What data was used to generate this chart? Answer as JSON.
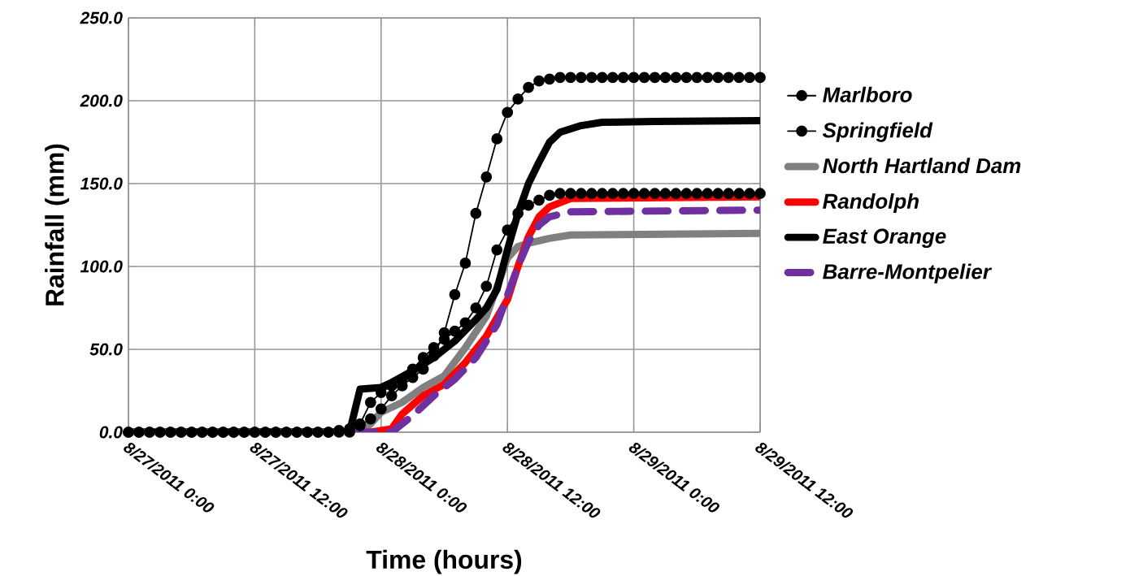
{
  "chart_data": {
    "type": "line",
    "xlabel": "Time (hours)",
    "ylabel": "Rainfall (mm)",
    "xlim": [
      "2011-08-27T00:00",
      "2011-08-29T12:00"
    ],
    "ylim": [
      0,
      250
    ],
    "xticks": [
      {
        "value": "2011-08-27T00:00",
        "label": "8/27/2011 0:00"
      },
      {
        "value": "2011-08-27T12:00",
        "label": "8/27/2011 12:00"
      },
      {
        "value": "2011-08-28T00:00",
        "label": "8/28/2011 0:00"
      },
      {
        "value": "2011-08-28T12:00",
        "label": "8/28/2011 12:00"
      },
      {
        "value": "2011-08-29T00:00",
        "label": "8/29/2011 0:00"
      },
      {
        "value": "2011-08-29T12:00",
        "label": "8/29/2011 12:00"
      }
    ],
    "yticks": [
      {
        "value": 0,
        "label": "0.0"
      },
      {
        "value": 50,
        "label": "50.0"
      },
      {
        "value": 100,
        "label": "100.0"
      },
      {
        "value": 150,
        "label": "150.0"
      },
      {
        "value": 200,
        "label": "200.0"
      },
      {
        "value": 250,
        "label": "250.0"
      }
    ],
    "grid": true,
    "legend": "right",
    "series": [
      {
        "name": "Marlboro",
        "color": "#000000",
        "marker": "circle",
        "x": [
          "2011-08-27T00:00",
          "2011-08-27T01:00",
          "2011-08-27T02:00",
          "2011-08-27T03:00",
          "2011-08-27T04:00",
          "2011-08-27T05:00",
          "2011-08-27T06:00",
          "2011-08-27T07:00",
          "2011-08-27T08:00",
          "2011-08-27T09:00",
          "2011-08-27T10:00",
          "2011-08-27T11:00",
          "2011-08-27T12:00",
          "2011-08-27T13:00",
          "2011-08-27T14:00",
          "2011-08-27T15:00",
          "2011-08-27T16:00",
          "2011-08-27T17:00",
          "2011-08-27T18:00",
          "2011-08-27T19:00",
          "2011-08-27T20:00",
          "2011-08-27T21:00",
          "2011-08-27T22:00",
          "2011-08-27T23:00",
          "2011-08-28T00:00",
          "2011-08-28T01:00",
          "2011-08-28T02:00",
          "2011-08-28T03:00",
          "2011-08-28T04:00",
          "2011-08-28T05:00",
          "2011-08-28T06:00",
          "2011-08-28T07:00",
          "2011-08-28T08:00",
          "2011-08-28T09:00",
          "2011-08-28T10:00",
          "2011-08-28T11:00",
          "2011-08-28T12:00",
          "2011-08-28T13:00",
          "2011-08-28T14:00",
          "2011-08-28T15:00",
          "2011-08-28T16:00",
          "2011-08-28T17:00",
          "2011-08-28T18:00",
          "2011-08-28T19:00",
          "2011-08-28T20:00",
          "2011-08-28T21:00",
          "2011-08-28T22:00",
          "2011-08-28T23:00",
          "2011-08-29T00:00",
          "2011-08-29T01:00",
          "2011-08-29T02:00",
          "2011-08-29T03:00",
          "2011-08-29T04:00",
          "2011-08-29T05:00",
          "2011-08-29T06:00",
          "2011-08-29T07:00",
          "2011-08-29T08:00",
          "2011-08-29T09:00",
          "2011-08-29T10:00",
          "2011-08-29T11:00",
          "2011-08-29T12:00"
        ],
        "values": [
          0,
          0,
          0,
          0,
          0,
          0,
          0,
          0,
          0,
          0,
          0,
          0,
          0,
          0,
          0,
          0,
          0,
          0,
          0,
          0,
          1,
          2,
          4,
          8,
          14,
          22,
          28,
          33,
          38,
          46,
          60,
          83,
          102,
          132,
          154,
          177,
          193,
          201,
          208,
          212,
          213,
          214,
          214,
          214,
          214,
          214,
          214,
          214,
          214,
          214,
          214,
          214,
          214,
          214,
          214,
          214,
          214,
          214,
          214,
          214,
          214
        ]
      },
      {
        "name": "Springfield",
        "color": "#000000",
        "marker": "circle",
        "x": [
          "2011-08-27T00:00",
          "2011-08-27T01:00",
          "2011-08-27T02:00",
          "2011-08-27T03:00",
          "2011-08-27T04:00",
          "2011-08-27T05:00",
          "2011-08-27T06:00",
          "2011-08-27T07:00",
          "2011-08-27T08:00",
          "2011-08-27T09:00",
          "2011-08-27T10:00",
          "2011-08-27T11:00",
          "2011-08-27T12:00",
          "2011-08-27T13:00",
          "2011-08-27T14:00",
          "2011-08-27T15:00",
          "2011-08-27T16:00",
          "2011-08-27T17:00",
          "2011-08-27T18:00",
          "2011-08-27T19:00",
          "2011-08-27T20:00",
          "2011-08-27T21:00",
          "2011-08-27T22:00",
          "2011-08-27T23:00",
          "2011-08-28T00:00",
          "2011-08-28T01:00",
          "2011-08-28T02:00",
          "2011-08-28T03:00",
          "2011-08-28T04:00",
          "2011-08-28T05:00",
          "2011-08-28T06:00",
          "2011-08-28T07:00",
          "2011-08-28T08:00",
          "2011-08-28T09:00",
          "2011-08-28T10:00",
          "2011-08-28T11:00",
          "2011-08-28T12:00",
          "2011-08-28T13:00",
          "2011-08-28T14:00",
          "2011-08-28T15:00",
          "2011-08-28T16:00",
          "2011-08-28T17:00",
          "2011-08-28T18:00",
          "2011-08-28T19:00",
          "2011-08-28T20:00",
          "2011-08-28T21:00",
          "2011-08-28T22:00",
          "2011-08-28T23:00",
          "2011-08-29T00:00",
          "2011-08-29T01:00",
          "2011-08-29T02:00",
          "2011-08-29T03:00",
          "2011-08-29T04:00",
          "2011-08-29T05:00",
          "2011-08-29T06:00",
          "2011-08-29T07:00",
          "2011-08-29T08:00",
          "2011-08-29T09:00",
          "2011-08-29T10:00",
          "2011-08-29T11:00",
          "2011-08-29T12:00"
        ],
        "values": [
          0,
          0,
          0,
          0,
          0,
          0,
          0,
          0,
          0,
          0,
          0,
          0,
          0,
          0,
          0,
          0,
          0,
          0,
          0,
          0,
          0,
          0,
          5,
          18,
          24,
          28,
          32,
          38,
          45,
          51,
          56,
          61,
          66,
          75,
          88,
          110,
          122,
          132,
          137,
          140,
          143,
          144,
          144,
          144,
          144,
          144,
          144,
          144,
          144,
          144,
          144,
          144,
          144,
          144,
          144,
          144,
          144,
          144,
          144,
          144,
          144
        ]
      },
      {
        "name": "North Hartland Dam",
        "color": "#808080",
        "x": [
          "2011-08-27T00:00",
          "2011-08-27T22:00",
          "2011-08-27T23:00",
          "2011-08-28T00:00",
          "2011-08-28T02:00",
          "2011-08-28T04:00",
          "2011-08-28T06:00",
          "2011-08-28T08:00",
          "2011-08-28T10:00",
          "2011-08-28T12:00",
          "2011-08-28T13:00",
          "2011-08-28T14:00",
          "2011-08-28T16:00",
          "2011-08-28T18:00",
          "2011-08-29T12:00"
        ],
        "values": [
          0,
          0,
          5,
          12,
          18,
          27,
          34,
          51,
          70,
          105,
          112,
          114,
          117,
          119,
          120
        ]
      },
      {
        "name": "Randolph",
        "color": "#ff0000",
        "x": [
          "2011-08-27T00:00",
          "2011-08-27T23:00",
          "2011-08-28T01:00",
          "2011-08-28T02:00",
          "2011-08-28T04:00",
          "2011-08-28T06:00",
          "2011-08-28T08:00",
          "2011-08-28T10:00",
          "2011-08-28T12:00",
          "2011-08-28T13:00",
          "2011-08-28T14:00",
          "2011-08-28T15:00",
          "2011-08-28T16:00",
          "2011-08-28T18:00",
          "2011-08-29T12:00"
        ],
        "values": [
          0,
          0,
          2,
          11,
          22,
          29,
          42,
          58,
          80,
          100,
          118,
          130,
          136,
          141,
          142
        ]
      },
      {
        "name": "East Orange",
        "color": "#000000",
        "x": [
          "2011-08-27T00:00",
          "2011-08-27T21:00",
          "2011-08-27T22:00",
          "2011-08-28T00:00",
          "2011-08-28T01:00",
          "2011-08-28T03:00",
          "2011-08-28T05:00",
          "2011-08-28T07:00",
          "2011-08-28T09:00",
          "2011-08-28T10:00",
          "2011-08-28T11:00",
          "2011-08-28T12:00",
          "2011-08-28T13:00",
          "2011-08-28T14:00",
          "2011-08-28T15:00",
          "2011-08-28T16:00",
          "2011-08-28T17:00",
          "2011-08-28T19:00",
          "2011-08-28T21:00",
          "2011-08-29T02:00",
          "2011-08-29T12:00"
        ],
        "values": [
          0,
          0,
          26,
          27,
          30,
          37,
          45,
          55,
          68,
          75,
          86,
          110,
          132,
          150,
          163,
          175,
          181,
          185,
          187,
          187.5,
          188
        ]
      },
      {
        "name": "Barre-Montpelier",
        "color": "#7030a0",
        "line_style": "dashed",
        "x": [
          "2011-08-27T00:00",
          "2011-08-28T01:00",
          "2011-08-28T03:00",
          "2011-08-28T05:00",
          "2011-08-28T07:00",
          "2011-08-28T09:00",
          "2011-08-28T11:00",
          "2011-08-28T13:00",
          "2011-08-28T14:00",
          "2011-08-28T15:00",
          "2011-08-28T16:00",
          "2011-08-28T18:00",
          "2011-08-29T12:00"
        ],
        "values": [
          0,
          0,
          10,
          22,
          32,
          45,
          65,
          100,
          115,
          125,
          130,
          133,
          134
        ]
      }
    ]
  }
}
